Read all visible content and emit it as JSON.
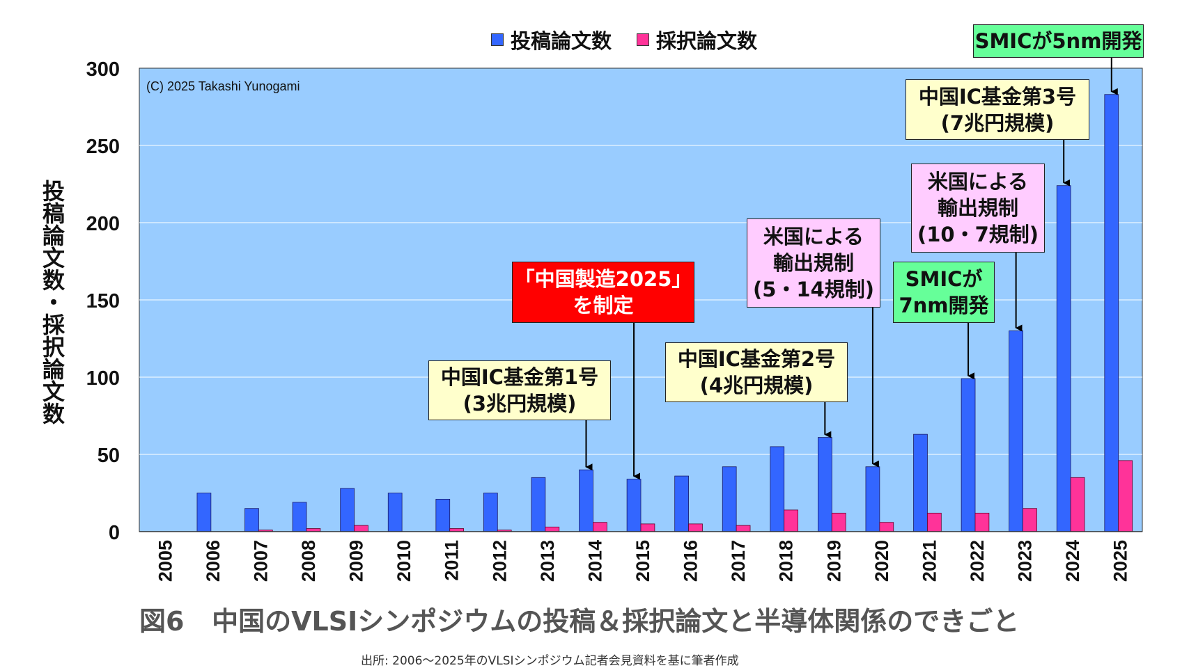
{
  "legend": {
    "submitted": "投稿論文数",
    "accepted": "採択論文数"
  },
  "colors": {
    "plot_bg": "#99ccff",
    "submitted": "#3366ff",
    "accepted": "#ff3399",
    "grid": "#ffffff"
  },
  "copyright": "(C) 2025 Takashi Yunogami",
  "ylabel": "投稿論文数・採択論文数",
  "figure_title": "図6   中国のVLSIシンポジウムの投稿＆採択論文と半導体関係のできごと",
  "source_note": "出所: 2006～2025年のVLSIシンポジウム記者会見資料を基に筆者作成",
  "annotations": [
    {
      "text": "中国IC基金第1号\n(3兆円規模)",
      "year": "2014",
      "style": "yellow"
    },
    {
      "text": "「中国製造2025」\nを制定",
      "year": "2015",
      "style": "red"
    },
    {
      "text": "中国IC基金第2号\n(4兆円規模)",
      "year": "2019",
      "style": "yellow"
    },
    {
      "text": "米国による\n輸出規制\n(5・14規制)",
      "year": "2020",
      "style": "pink"
    },
    {
      "text": "SMICが\n7nm開発",
      "year": "2022",
      "style": "green"
    },
    {
      "text": "米国による\n輸出規制\n(10・7規制)",
      "year": "2023",
      "style": "pink"
    },
    {
      "text": "中国IC基金第3号\n(7兆円規模)",
      "year": "2024",
      "style": "yellow"
    },
    {
      "text": "SMICが5nm開発",
      "year": "2025",
      "style": "green"
    }
  ],
  "chart_data": {
    "type": "bar",
    "categories": [
      "2005",
      "2006",
      "2007",
      "2008",
      "2009",
      "2010",
      "2011",
      "2012",
      "2013",
      "2014",
      "2015",
      "2016",
      "2017",
      "2018",
      "2019",
      "2020",
      "2021",
      "2022",
      "2023",
      "2024",
      "2025"
    ],
    "series": [
      {
        "name": "投稿論文数",
        "values": [
          0,
          25,
          15,
          19,
          28,
          25,
          21,
          25,
          35,
          40,
          34,
          36,
          42,
          55,
          61,
          42,
          63,
          99,
          130,
          224,
          283
        ]
      },
      {
        "name": "採択論文数",
        "values": [
          0,
          0,
          1,
          2,
          4,
          0,
          2,
          1,
          3,
          6,
          5,
          5,
          4,
          14,
          12,
          6,
          12,
          12,
          15,
          35,
          46
        ]
      }
    ],
    "ylim": [
      0,
      300
    ],
    "yticks": [
      "0",
      "50",
      "100",
      "150",
      "200",
      "250",
      "300"
    ],
    "grid": true,
    "legend_position": "top"
  }
}
